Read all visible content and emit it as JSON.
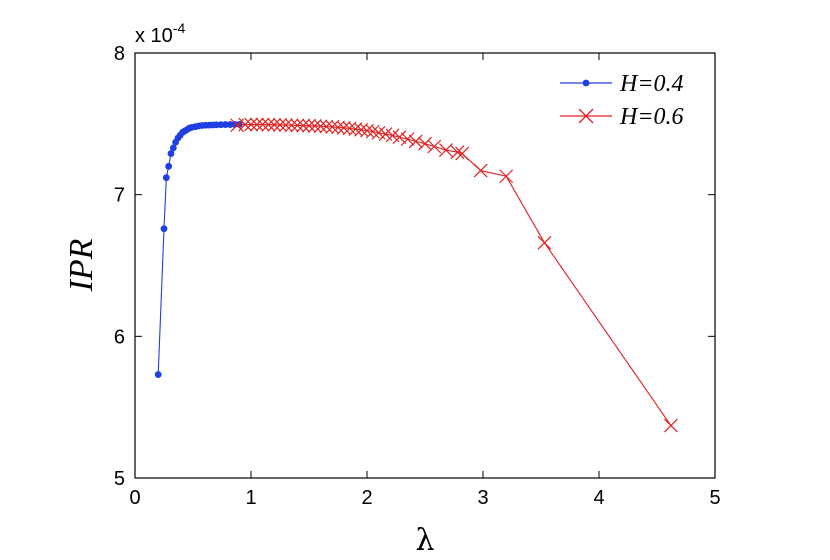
{
  "chart_data": {
    "type": "line",
    "title": "",
    "xlabel": "λ",
    "ylabel": "IPR",
    "y_multiplier_label": {
      "base": "x 10",
      "exponent": "-4"
    },
    "xlim": [
      0,
      5
    ],
    "ylim": [
      5,
      8
    ],
    "xticks": [
      "0",
      "1",
      "2",
      "3",
      "4",
      "5"
    ],
    "yticks": [
      "5",
      "6",
      "7",
      "8"
    ],
    "grid": false,
    "legend_position": "top-right",
    "series": [
      {
        "name": "H=0.4",
        "color": "#1f3fe0",
        "marker": "dot",
        "x": [
          0.2,
          0.25,
          0.27,
          0.29,
          0.31,
          0.33,
          0.35,
          0.37,
          0.39,
          0.41,
          0.43,
          0.45,
          0.47,
          0.49,
          0.52,
          0.55,
          0.58,
          0.61,
          0.64,
          0.67,
          0.7,
          0.74,
          0.78,
          0.82,
          0.86,
          0.9
        ],
        "y": [
          5.73,
          6.76,
          7.12,
          7.2,
          7.29,
          7.33,
          7.37,
          7.4,
          7.42,
          7.44,
          7.45,
          7.46,
          7.47,
          7.475,
          7.48,
          7.485,
          7.488,
          7.49,
          7.491,
          7.492,
          7.493,
          7.494,
          7.495,
          7.495,
          7.496,
          7.496
        ]
      },
      {
        "name": "H=0.6",
        "color": "#e02020",
        "marker": "x",
        "x": [
          0.88,
          0.95,
          1.0,
          1.05,
          1.1,
          1.15,
          1.2,
          1.25,
          1.3,
          1.35,
          1.4,
          1.45,
          1.5,
          1.55,
          1.6,
          1.65,
          1.7,
          1.75,
          1.8,
          1.85,
          1.9,
          1.95,
          2.0,
          2.05,
          2.1,
          2.16,
          2.22,
          2.28,
          2.35,
          2.42,
          2.5,
          2.58,
          2.68,
          2.78,
          2.82,
          2.98,
          3.2,
          3.53,
          4.62
        ],
        "y": [
          7.49,
          7.495,
          7.495,
          7.495,
          7.495,
          7.494,
          7.493,
          7.492,
          7.491,
          7.49,
          7.489,
          7.488,
          7.487,
          7.485,
          7.483,
          7.481,
          7.478,
          7.475,
          7.472,
          7.468,
          7.463,
          7.458,
          7.452,
          7.445,
          7.437,
          7.428,
          7.418,
          7.406,
          7.392,
          7.376,
          7.36,
          7.34,
          7.315,
          7.3,
          7.29,
          7.17,
          7.13,
          6.66,
          5.37
        ]
      }
    ]
  }
}
